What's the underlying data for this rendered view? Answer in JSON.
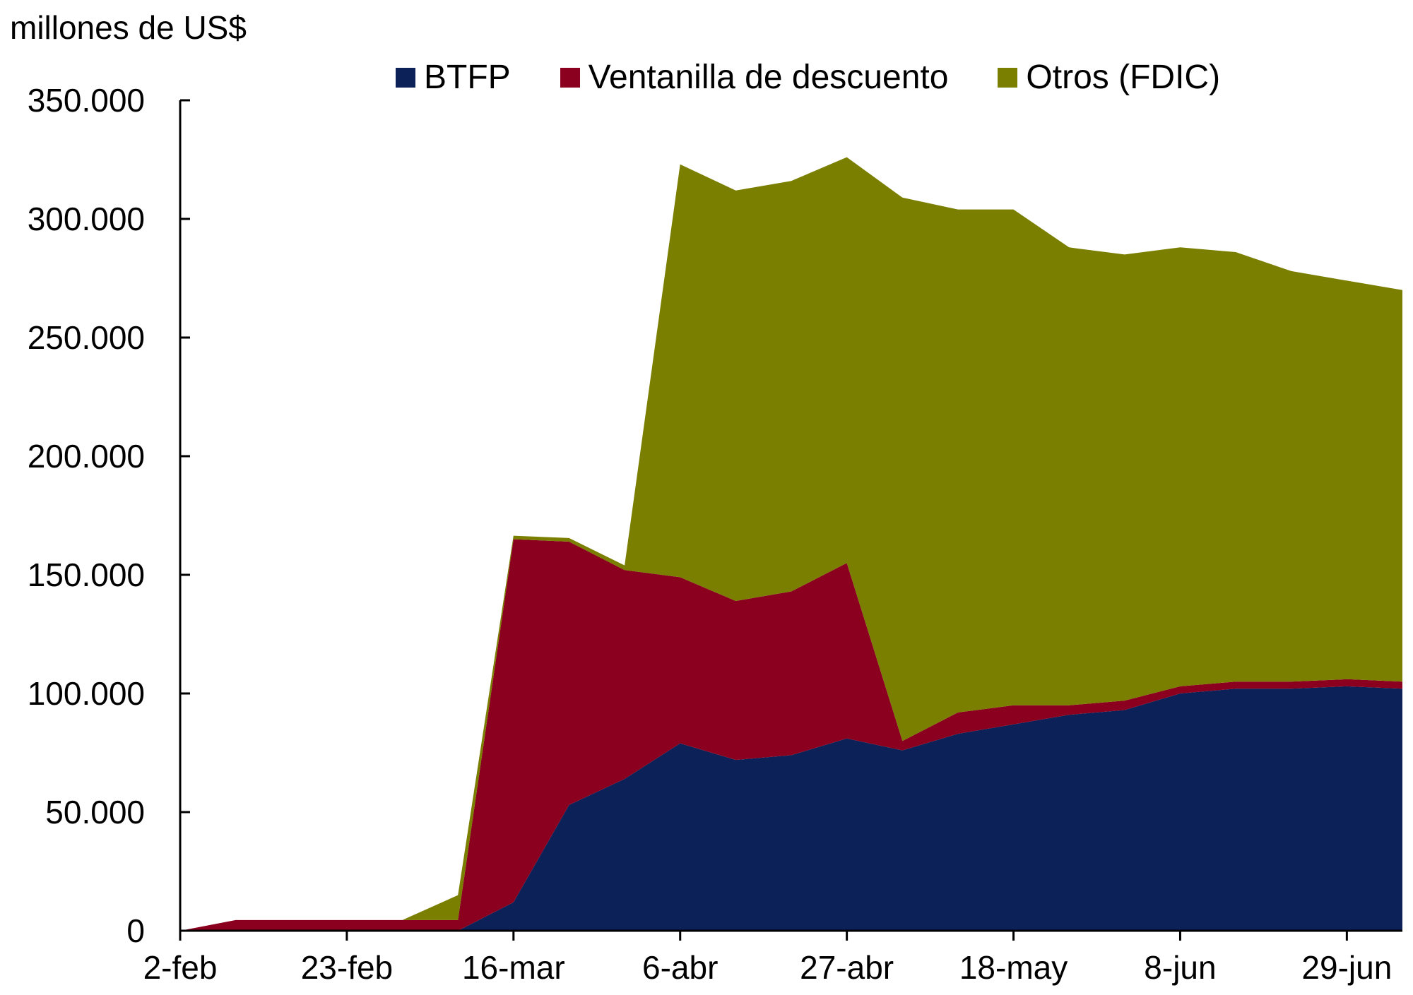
{
  "unit_label": "millones de US$",
  "colors": {
    "btfp": "#0b2158",
    "ventanilla": "#8a001e",
    "otros": "#7a7f00"
  },
  "chart_data": {
    "type": "area",
    "stacked": true,
    "ylabel": "millones de US$",
    "ylim": [
      0,
      350000
    ],
    "y_ticks": [
      0,
      50000,
      100000,
      150000,
      200000,
      250000,
      300000,
      350000
    ],
    "y_tick_labels": [
      "0",
      "50.000",
      "100.000",
      "150.000",
      "200.000",
      "250.000",
      "300.000",
      "350.000"
    ],
    "x_tick_labels": [
      "2-feb",
      "23-feb",
      "16-mar",
      "6-abr",
      "27-abr",
      "18-may",
      "8-jun",
      "29-jun"
    ],
    "x": [
      "1-feb",
      "8-feb",
      "15-feb",
      "22-feb",
      "1-mar",
      "8-mar",
      "15-mar",
      "22-mar",
      "29-mar",
      "5-abr",
      "12-abr",
      "19-abr",
      "26-abr",
      "3-may",
      "10-may",
      "17-may",
      "24-may",
      "31-may",
      "7-jun",
      "14-jun",
      "21-jun",
      "28-jun",
      "5-jul"
    ],
    "series": [
      {
        "name": "BTFP",
        "color": "#0b2158",
        "values": [
          0,
          0,
          0,
          0,
          0,
          0,
          12000,
          53000,
          64000,
          79000,
          72000,
          74000,
          81000,
          76000,
          83000,
          87000,
          91000,
          93000,
          100000,
          102000,
          102000,
          103000,
          102000
        ]
      },
      {
        "name": "Ventanilla de descuento",
        "color": "#8a001e",
        "values": [
          0,
          4500,
          4500,
          4500,
          4500,
          4500,
          153000,
          111000,
          88000,
          70000,
          67000,
          69000,
          74000,
          4000,
          9000,
          8000,
          4000,
          4000,
          3000,
          3000,
          3000,
          3000,
          3000
        ]
      },
      {
        "name": "Otros (FDIC)",
        "color": "#7a7f00",
        "values": [
          0,
          0,
          0,
          0,
          0,
          10500,
          1500,
          1500,
          2000,
          174000,
          173000,
          173000,
          171000,
          229000,
          212000,
          209000,
          193000,
          188000,
          185000,
          181000,
          173000,
          168000,
          165000
        ]
      }
    ]
  }
}
